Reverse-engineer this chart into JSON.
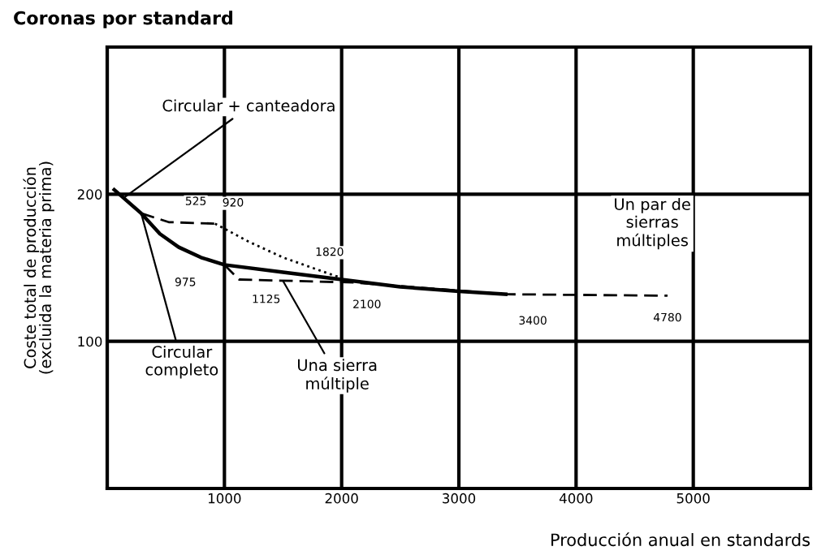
{
  "chart_data": {
    "type": "line",
    "title": "Coronas por standard",
    "xlabel": "Producción anual en standards",
    "ylabel": "Coste total de producción\n(excluida la materia prima)",
    "xlim": [
      0,
      6000
    ],
    "ylim": [
      0,
      300
    ],
    "xticks": [
      {
        "value": 0,
        "label": null
      },
      1000,
      2000,
      3000,
      4000,
      5000,
      {
        "value": 6000,
        "label": null
      }
    ],
    "yticks": [
      {
        "value": 0,
        "label": null
      },
      100,
      200,
      {
        "value": 300,
        "label": null
      }
    ],
    "grid": true,
    "marker": "none",
    "series": [
      {
        "color": "#000000",
        "line_style": "solid",
        "x": [
          60,
          290,
          450,
          610,
          800,
          1000,
          1500,
          2000,
          2500,
          3000,
          3400
        ],
        "values": [
          203,
          187,
          173,
          164,
          157,
          152,
          147,
          142,
          137,
          134,
          132
        ]
      },
      {
        "color": "#000000",
        "line_style": "dashed",
        "x": [
          290,
          525,
          920
        ],
        "values": [
          187,
          181,
          180
        ]
      },
      {
        "color": "#000000",
        "line_style": "dotted",
        "x": [
          920,
          1200,
          1500,
          1820,
          2000
        ],
        "values": [
          180,
          168,
          157,
          148,
          143
        ]
      },
      {
        "color": "#000000",
        "line_style": "dashed",
        "x": [
          1000,
          1125,
          2100,
          3400,
          4780
        ],
        "values": [
          152,
          142,
          140,
          132,
          131
        ]
      }
    ],
    "annotations": [
      {
        "text": "Circular + canteadora",
        "x": 150,
        "y": 198
      },
      {
        "text": "Circular\ncompleto",
        "x": 290,
        "y": 187
      },
      {
        "text": "Una sierra\nmúltiple",
        "x": 1500,
        "y": 141
      },
      "Un par de\nsierras\nmúltiples",
      {
        "text": "525",
        "x": 525,
        "y": 181
      },
      {
        "text": "920",
        "x": 920,
        "y": 180
      },
      {
        "text": "975",
        "x": 975,
        "y": 152
      },
      {
        "text": "1125",
        "x": 1125,
        "y": 142
      },
      {
        "text": "1820",
        "x": 1820,
        "y": 148
      },
      {
        "text": "2100",
        "x": 2100,
        "y": 140
      },
      {
        "text": "3400",
        "x": 3400,
        "y": 132
      },
      {
        "text": "4780",
        "x": 4780,
        "y": 131
      }
    ]
  }
}
